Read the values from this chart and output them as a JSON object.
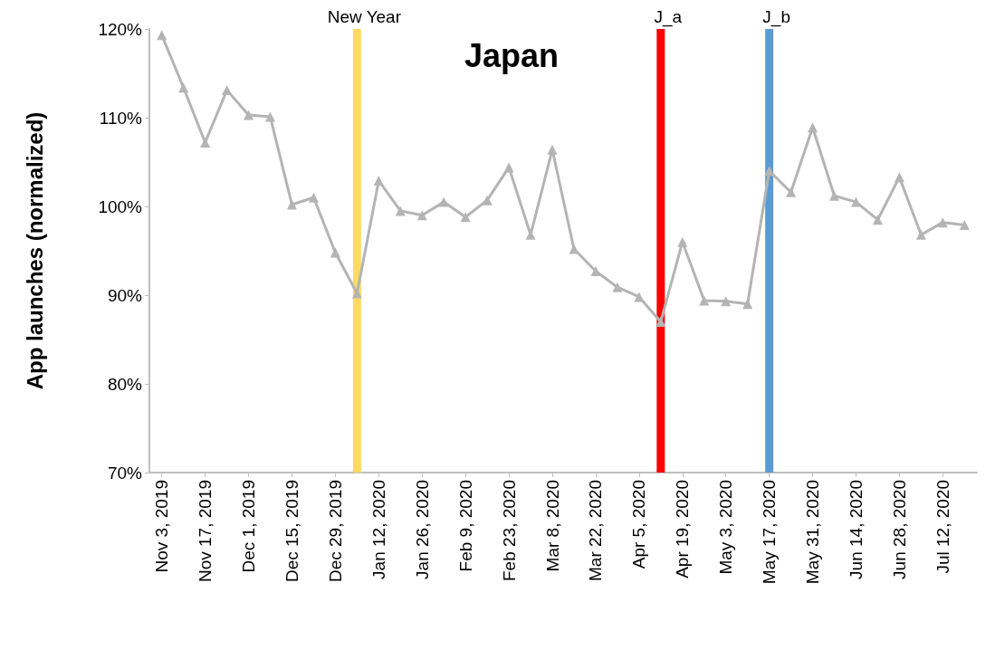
{
  "chart_data": {
    "type": "line",
    "title": "Japan",
    "ylabel": "App launches (normalized)",
    "x": [
      "2019-11-03",
      "2019-11-10",
      "2019-11-17",
      "2019-11-24",
      "2019-12-01",
      "2019-12-08",
      "2019-12-15",
      "2019-12-22",
      "2019-12-29",
      "2020-01-05",
      "2020-01-12",
      "2020-01-19",
      "2020-01-26",
      "2020-02-02",
      "2020-02-09",
      "2020-02-16",
      "2020-02-23",
      "2020-03-01",
      "2020-03-08",
      "2020-03-15",
      "2020-03-22",
      "2020-03-29",
      "2020-04-05",
      "2020-04-12",
      "2020-04-19",
      "2020-04-26",
      "2020-05-03",
      "2020-05-10",
      "2020-05-17",
      "2020-05-24",
      "2020-05-31",
      "2020-06-07",
      "2020-06-14",
      "2020-06-21",
      "2020-06-28",
      "2020-07-05",
      "2020-07-12",
      "2020-07-19"
    ],
    "series": [
      {
        "color": "#b4b4b4",
        "values": [
          119.3,
          113.4,
          107.2,
          113.1,
          110.3,
          110.1,
          100.2,
          101.0,
          94.8,
          90.2,
          102.9,
          99.5,
          99.0,
          100.5,
          98.8,
          100.7,
          104.4,
          96.8,
          106.4,
          95.2,
          92.7,
          90.9,
          89.8,
          87.0,
          96.0,
          89.4,
          89.3,
          89.0,
          104.0,
          101.6,
          108.9,
          101.2,
          100.5,
          98.5,
          103.3,
          96.8,
          98.2,
          97.9
        ]
      }
    ],
    "xlim": [
      "2019-10-30",
      "2020-07-23"
    ],
    "xticks": [
      {
        "value": "2019-11-03",
        "label": "Nov 3, 2019"
      },
      {
        "value": "2019-11-17",
        "label": "Nov 17, 2019"
      },
      {
        "value": "2019-12-01",
        "label": "Dec 1, 2019"
      },
      {
        "value": "2019-12-15",
        "label": "Dec 15, 2019"
      },
      {
        "value": "2019-12-29",
        "label": "Dec 29, 2019"
      },
      {
        "value": "2020-01-12",
        "label": "Jan 12, 2020"
      },
      {
        "value": "2020-01-26",
        "label": "Jan 26, 2020"
      },
      {
        "value": "2020-02-09",
        "label": "Feb 9, 2020"
      },
      {
        "value": "2020-02-23",
        "label": "Feb 23, 2020"
      },
      {
        "value": "2020-03-08",
        "label": "Mar 8, 2020"
      },
      {
        "value": "2020-03-22",
        "label": "Mar 22, 2020"
      },
      {
        "value": "2020-04-05",
        "label": "Apr 5, 2020"
      },
      {
        "value": "2020-04-19",
        "label": "Apr 19, 2020"
      },
      {
        "value": "2020-05-03",
        "label": "May 3, 2020"
      },
      {
        "value": "2020-05-17",
        "label": "May 17, 2020"
      },
      {
        "value": "2020-05-31",
        "label": "May 31, 2020"
      },
      {
        "value": "2020-06-14",
        "label": "Jun 14, 2020"
      },
      {
        "value": "2020-06-28",
        "label": "Jun 28, 2020"
      },
      {
        "value": "2020-07-12",
        "label": "Jul 12, 2020"
      }
    ],
    "ylim": [
      70,
      120
    ],
    "yticks": [
      {
        "value": 70,
        "label": "70%"
      },
      {
        "value": 80,
        "label": "80%"
      },
      {
        "value": 90,
        "label": "90%"
      },
      {
        "value": 100,
        "label": "100%"
      },
      {
        "value": 110,
        "label": "110%"
      },
      {
        "value": 120,
        "label": "120%"
      }
    ],
    "ref_lines": [
      {
        "axis": "x",
        "value": "2020-01-05",
        "label": "New Year",
        "color": "#ffd966"
      },
      {
        "axis": "x",
        "value": "2020-04-12",
        "label": "J_a",
        "color": "#ff0000"
      },
      {
        "axis": "x",
        "value": "2020-05-17",
        "label": "J_b",
        "color": "#5b9bd5"
      }
    ],
    "marker": "triangle",
    "line_style": "solid"
  }
}
